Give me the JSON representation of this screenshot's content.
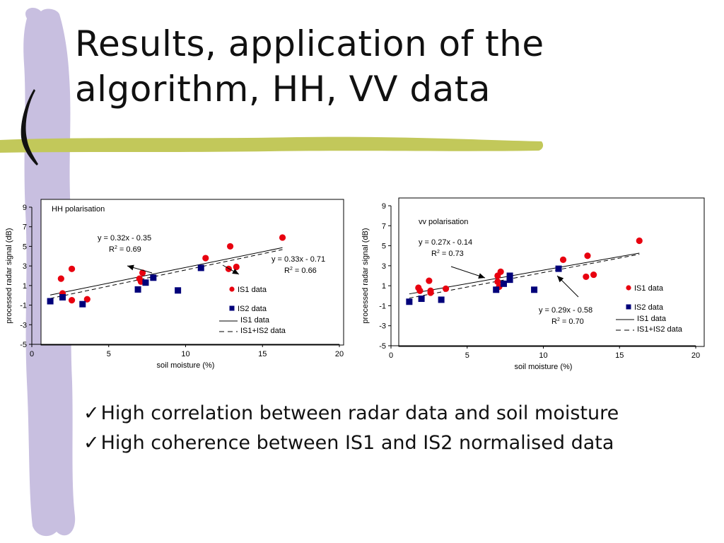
{
  "slide": {
    "title_line1": "Results, application of the",
    "title_line2": "algorithm, HH, VV data",
    "bullet_mark": "✓",
    "bullets": [
      "High correlation between radar data and soil moisture",
      "High coherence between IS1 and IS2 normalised data"
    ],
    "colors": {
      "ribbon": "#c8bfe0",
      "bar": "#c2c85a",
      "is1": "#e8000f",
      "is2": "#00007a"
    }
  },
  "chart_data": [
    {
      "type": "scatter",
      "title": "HH polarisation",
      "xlabel": "soil moisture (%)",
      "ylabel": "processed radar signal (dB)",
      "xlim": [
        0,
        20
      ],
      "ylim": [
        -5,
        9
      ],
      "xticks": [
        0,
        5,
        10,
        15,
        20
      ],
      "yticks": [
        -5,
        -3,
        -1,
        1,
        3,
        5,
        7,
        9
      ],
      "grid": false,
      "legend_position": "bottom-right",
      "legend": [
        "IS1 data",
        "IS2 data",
        "IS1 data",
        "IS1+IS2 data"
      ],
      "series": [
        {
          "name": "IS1 data",
          "marker": "circle",
          "x": [
            1.9,
            2.0,
            2.6,
            2.6,
            3.6,
            7.0,
            7.1,
            7.2,
            11.3,
            12.8,
            12.9,
            13.3,
            16.3
          ],
          "y": [
            1.7,
            0.2,
            2.7,
            -0.5,
            -0.4,
            1.7,
            1.4,
            2.3,
            3.8,
            2.7,
            5.0,
            2.9,
            5.9
          ]
        },
        {
          "name": "IS2 data",
          "marker": "square",
          "x": [
            1.2,
            2.0,
            3.3,
            6.9,
            7.4,
            7.9,
            9.5,
            11.0
          ],
          "y": [
            -0.6,
            -0.2,
            -0.9,
            0.6,
            1.3,
            1.8,
            0.5,
            2.8
          ]
        }
      ],
      "fits": [
        {
          "name": "IS1 data",
          "style": "solid",
          "slope": 0.32,
          "intercept": -0.35,
          "x_range": [
            1.2,
            16.3
          ]
        },
        {
          "name": "IS1+IS2 data",
          "style": "dashed",
          "slope": 0.33,
          "intercept": -0.71,
          "x_range": [
            1.2,
            16.3
          ]
        }
      ],
      "annotations": [
        {
          "eq": "y = 0.32x - 0.35",
          "r2_prefix": "R",
          "r2_sup": "2",
          "r2_value": " = 0.69"
        },
        {
          "eq": "y = 0.33x - 0.71",
          "r2_prefix": "R",
          "r2_sup": "2",
          "r2_value": " = 0.66"
        }
      ]
    },
    {
      "type": "scatter",
      "title": "vv polarisation",
      "xlabel": "soil moisture (%)",
      "ylabel": "processed radar signal (dB)",
      "xlim": [
        0,
        20
      ],
      "ylim": [
        -5,
        9
      ],
      "xticks": [
        0,
        5,
        10,
        15,
        20
      ],
      "yticks": [
        -5,
        -3,
        -1,
        1,
        3,
        5,
        7,
        9
      ],
      "grid": false,
      "legend_position": "bottom-right",
      "legend": [
        "IS1 data",
        "IS2 data",
        "IS1 data",
        "IS1+IS2 data"
      ],
      "series": [
        {
          "name": "IS1 data",
          "marker": "circle",
          "x": [
            1.8,
            1.9,
            2.5,
            2.6,
            2.6,
            3.6,
            7.0,
            7.0,
            7.1,
            7.2,
            11.3,
            12.8,
            12.9,
            13.3,
            16.3
          ],
          "y": [
            0.8,
            0.5,
            1.5,
            0.5,
            0.3,
            0.7,
            2.0,
            1.4,
            0.9,
            2.4,
            3.6,
            1.9,
            4.0,
            2.1,
            5.5
          ]
        },
        {
          "name": "IS2 data",
          "marker": "square",
          "x": [
            1.2,
            2.0,
            3.3,
            6.9,
            7.4,
            7.8,
            7.8,
            9.4,
            11.0
          ],
          "y": [
            -0.6,
            -0.3,
            -0.4,
            0.6,
            1.2,
            1.6,
            2.0,
            0.6,
            2.7
          ]
        }
      ],
      "fits": [
        {
          "name": "IS1 data",
          "style": "solid",
          "slope": 0.27,
          "intercept": -0.14,
          "x_range": [
            1.2,
            16.3
          ]
        },
        {
          "name": "IS1+IS2 data",
          "style": "dashed",
          "slope": 0.29,
          "intercept": -0.58,
          "x_range": [
            1.2,
            16.3
          ]
        }
      ],
      "annotations": [
        {
          "eq": "y = 0.27x - 0.14",
          "r2_prefix": "R",
          "r2_sup": "2",
          "r2_value": " = 0.73"
        },
        {
          "eq": "y = 0.29x - 0.58",
          "r2_prefix": "R",
          "r2_sup": "2",
          "r2_value": " = 0.70"
        }
      ]
    }
  ]
}
